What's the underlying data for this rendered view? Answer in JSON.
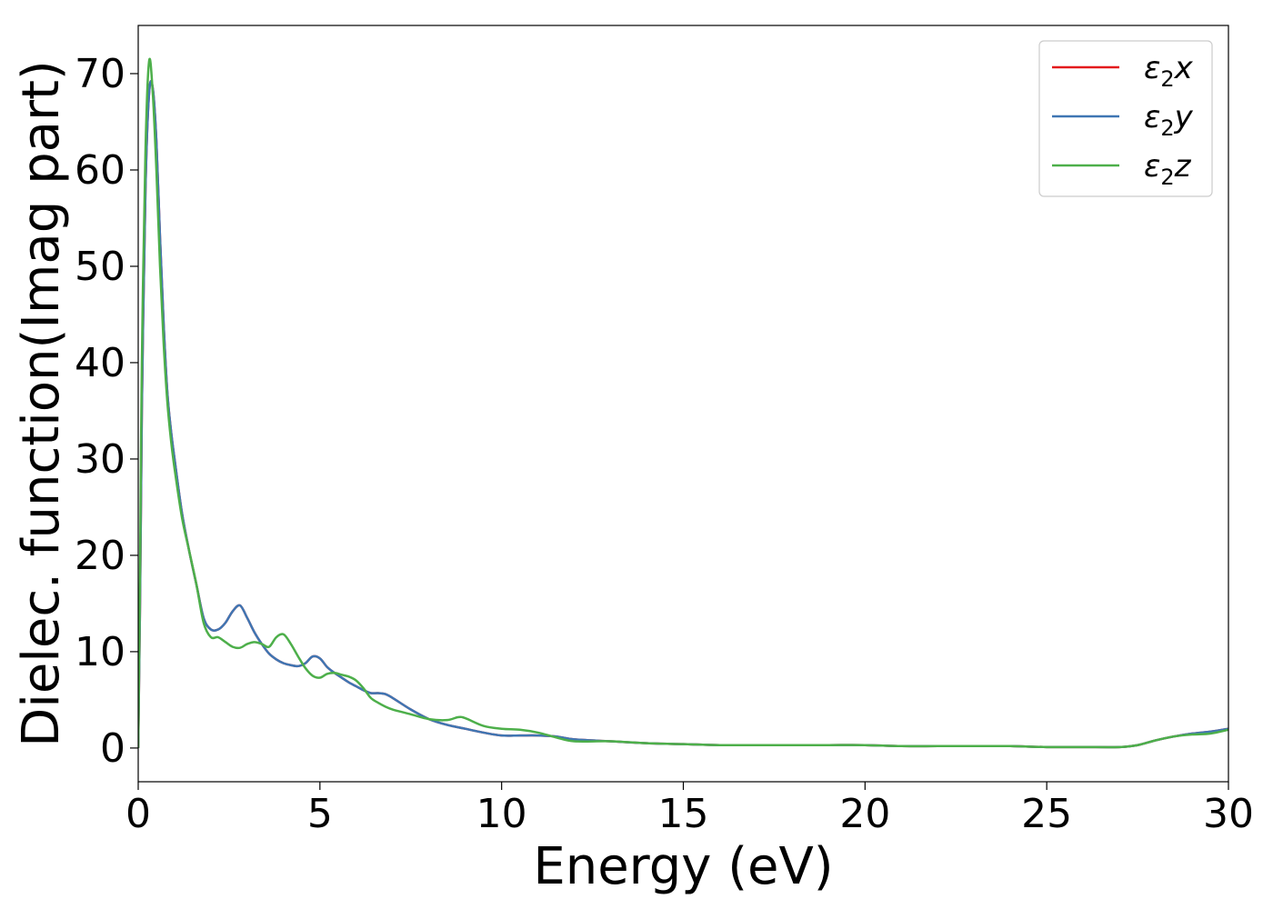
{
  "chart_data": {
    "type": "line",
    "title": "",
    "xlabel": "Energy (eV)",
    "ylabel": "Dielec. function(Imag part)",
    "xlim": [
      0,
      30
    ],
    "ylim": [
      -3.5,
      75
    ],
    "xticks": [
      0,
      5,
      10,
      15,
      20,
      25,
      30
    ],
    "yticks": [
      0,
      10,
      20,
      30,
      40,
      50,
      60,
      70
    ],
    "grid": false,
    "legend_position": "top-right",
    "series": [
      {
        "name": "ε₂x",
        "legend_base": "ε",
        "legend_sub": "2",
        "legend_var": "x",
        "color": "#e41a1c",
        "x": [
          0,
          0.05,
          0.1,
          0.2,
          0.3,
          0.4,
          0.5,
          0.6,
          0.7,
          0.8,
          0.9,
          1.0,
          1.2,
          1.4,
          1.6,
          1.8,
          2.0,
          2.2,
          2.4,
          2.6,
          2.8,
          3.0,
          3.2,
          3.4,
          3.6,
          3.8,
          4.0,
          4.2,
          4.4,
          4.6,
          4.8,
          5.0,
          5.2,
          5.4,
          5.6,
          5.8,
          6.0,
          6.2,
          6.4,
          6.6,
          6.8,
          7.0,
          7.5,
          8.0,
          8.5,
          9.0,
          9.5,
          10.0,
          10.5,
          11.0,
          11.5,
          12.0,
          13.0,
          14.0,
          15.0,
          16.0,
          17.0,
          18.0,
          19.0,
          20.0,
          21.0,
          22.0,
          23.0,
          24.0,
          25.0,
          26.0,
          27.0,
          27.5,
          28.0,
          28.5,
          29.0,
          29.5,
          30.0
        ],
        "y": [
          0,
          15,
          35,
          58,
          68,
          68.5,
          63,
          53,
          44,
          37,
          33,
          30,
          24.5,
          20.5,
          17,
          13.5,
          12.3,
          12.3,
          13,
          14.2,
          14.8,
          13.5,
          12,
          10.8,
          9.8,
          9.2,
          8.8,
          8.6,
          8.5,
          8.8,
          9.5,
          9.3,
          8.4,
          7.8,
          7.3,
          6.8,
          6.4,
          6.0,
          5.7,
          5.7,
          5.6,
          5.2,
          4.0,
          3.0,
          2.4,
          2.0,
          1.6,
          1.3,
          1.3,
          1.3,
          1.2,
          0.9,
          0.7,
          0.5,
          0.4,
          0.3,
          0.3,
          0.3,
          0.3,
          0.3,
          0.2,
          0.2,
          0.2,
          0.2,
          0.1,
          0.1,
          0.1,
          0.3,
          0.8,
          1.2,
          1.5,
          1.7,
          2.0
        ]
      },
      {
        "name": "ε₂y",
        "legend_base": "ε",
        "legend_sub": "2",
        "legend_var": "y",
        "color": "#3f76b3",
        "x": [
          0,
          0.05,
          0.1,
          0.2,
          0.3,
          0.4,
          0.5,
          0.6,
          0.7,
          0.8,
          0.9,
          1.0,
          1.2,
          1.4,
          1.6,
          1.8,
          2.0,
          2.2,
          2.4,
          2.6,
          2.8,
          3.0,
          3.2,
          3.4,
          3.6,
          3.8,
          4.0,
          4.2,
          4.4,
          4.6,
          4.8,
          5.0,
          5.2,
          5.4,
          5.6,
          5.8,
          6.0,
          6.2,
          6.4,
          6.6,
          6.8,
          7.0,
          7.5,
          8.0,
          8.5,
          9.0,
          9.5,
          10.0,
          10.5,
          11.0,
          11.5,
          12.0,
          13.0,
          14.0,
          15.0,
          16.0,
          17.0,
          18.0,
          19.0,
          20.0,
          21.0,
          22.0,
          23.0,
          24.0,
          25.0,
          26.0,
          27.0,
          27.5,
          28.0,
          28.5,
          29.0,
          29.5,
          30.0
        ],
        "y": [
          0,
          15,
          35,
          58,
          68,
          68.5,
          63,
          53,
          44,
          37,
          33,
          30,
          24.5,
          20.5,
          17,
          13.5,
          12.3,
          12.3,
          13,
          14.2,
          14.8,
          13.5,
          12,
          10.8,
          9.8,
          9.2,
          8.8,
          8.6,
          8.5,
          8.8,
          9.5,
          9.3,
          8.4,
          7.8,
          7.3,
          6.8,
          6.4,
          6.0,
          5.7,
          5.7,
          5.6,
          5.2,
          4.0,
          3.0,
          2.4,
          2.0,
          1.6,
          1.3,
          1.3,
          1.3,
          1.2,
          0.9,
          0.7,
          0.5,
          0.4,
          0.3,
          0.3,
          0.3,
          0.3,
          0.3,
          0.2,
          0.2,
          0.2,
          0.2,
          0.1,
          0.1,
          0.1,
          0.3,
          0.8,
          1.2,
          1.5,
          1.7,
          2.0
        ]
      },
      {
        "name": "ε₂z",
        "legend_base": "ε",
        "legend_sub": "2",
        "legend_var": "z",
        "color": "#4daf4a",
        "x": [
          0,
          0.05,
          0.1,
          0.2,
          0.3,
          0.4,
          0.5,
          0.6,
          0.7,
          0.8,
          0.9,
          1.0,
          1.2,
          1.4,
          1.6,
          1.8,
          2.0,
          2.2,
          2.4,
          2.6,
          2.8,
          3.0,
          3.2,
          3.4,
          3.6,
          3.8,
          4.0,
          4.2,
          4.4,
          4.6,
          4.8,
          5.0,
          5.2,
          5.4,
          5.6,
          5.8,
          6.0,
          6.2,
          6.4,
          6.6,
          6.8,
          7.0,
          7.5,
          8.0,
          8.5,
          8.8,
          9.0,
          9.5,
          10.0,
          10.5,
          11.0,
          11.5,
          12.0,
          13.0,
          14.0,
          15.0,
          16.0,
          17.0,
          18.0,
          19.0,
          20.0,
          21.0,
          22.0,
          23.0,
          24.0,
          25.0,
          26.0,
          27.0,
          27.5,
          28.0,
          28.5,
          29.0,
          29.5,
          30.0
        ],
        "y": [
          0,
          18,
          40,
          62,
          71.3,
          68,
          60,
          50,
          42,
          36,
          32,
          29,
          24,
          20.5,
          17,
          13,
          11.5,
          11.5,
          11,
          10.5,
          10.4,
          10.8,
          11,
          10.8,
          10.5,
          11.5,
          11.8,
          10.8,
          9.5,
          8.3,
          7.5,
          7.3,
          7.7,
          7.8,
          7.6,
          7.4,
          7.0,
          6.2,
          5.2,
          4.7,
          4.3,
          4.0,
          3.5,
          3.0,
          2.9,
          3.2,
          3.1,
          2.3,
          2.0,
          1.9,
          1.6,
          1.1,
          0.7,
          0.7,
          0.5,
          0.4,
          0.3,
          0.3,
          0.3,
          0.3,
          0.3,
          0.2,
          0.2,
          0.2,
          0.2,
          0.1,
          0.1,
          0.1,
          0.3,
          0.8,
          1.2,
          1.4,
          1.5,
          1.9
        ]
      }
    ]
  }
}
